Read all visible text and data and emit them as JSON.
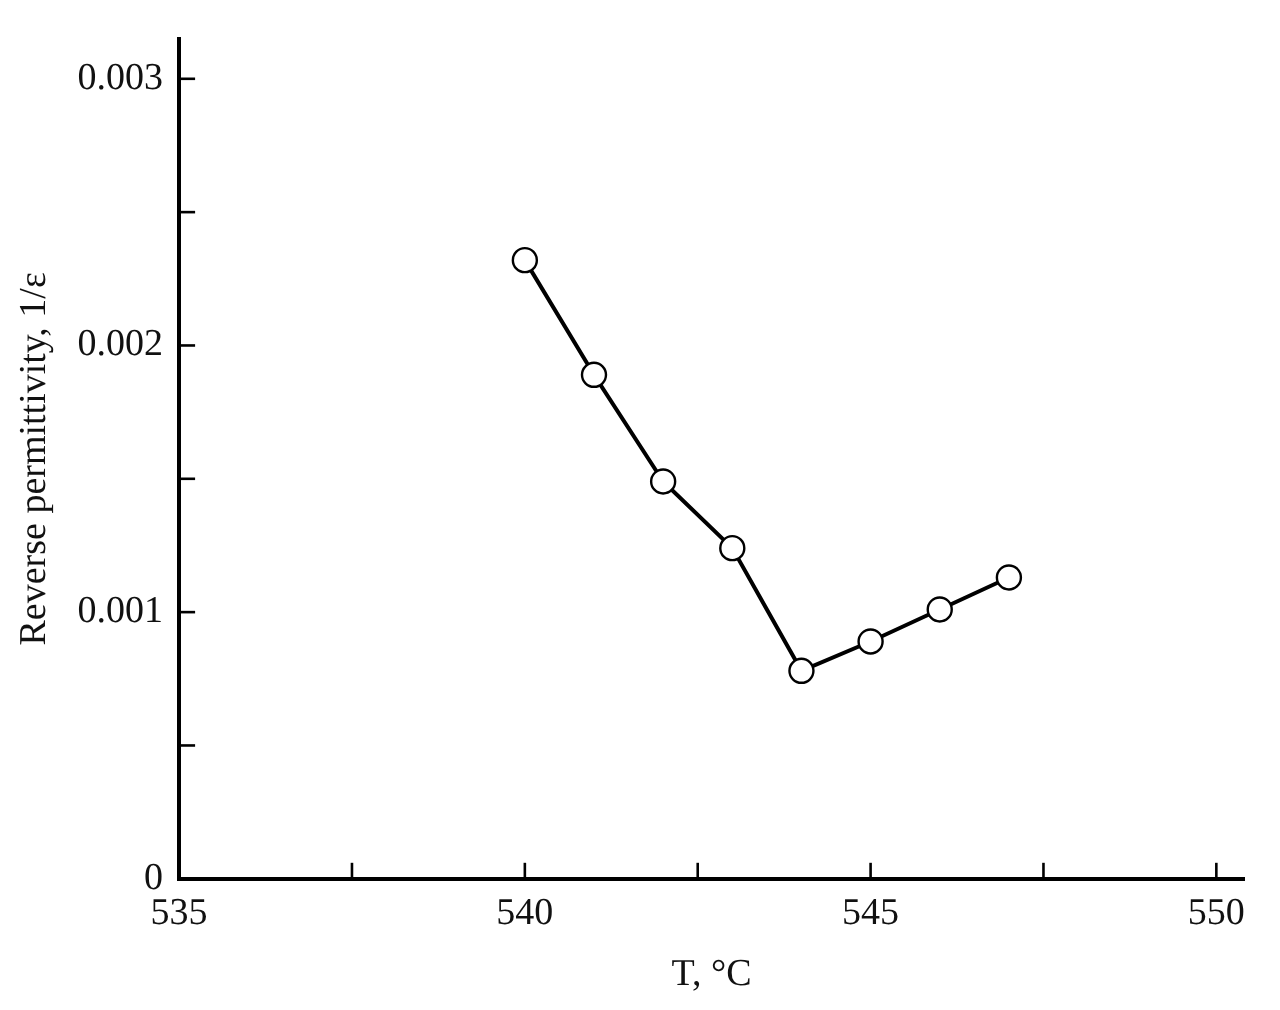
{
  "chart_data": {
    "type": "line",
    "xlabel": "T, °C",
    "ylabel": "Reverse permittivity, 1/ε",
    "x": [
      540,
      541,
      542,
      543,
      544,
      545,
      546,
      547
    ],
    "series": [
      {
        "color": "#000000",
        "values": [
          0.00232,
          0.00189,
          0.00149,
          0.00124,
          0.00078,
          0.00089,
          0.00101,
          0.00113
        ]
      }
    ],
    "xlim": [
      535,
      550.4
    ],
    "ylim": [
      0,
      0.00315
    ],
    "xticks": [
      535,
      {
        "value": 537.5,
        "label": null
      },
      540,
      {
        "value": 542.5,
        "label": null
      },
      545,
      {
        "value": 547.5,
        "label": null
      },
      550
    ],
    "yticks": [
      0,
      {
        "value": 0.0005,
        "label": null
      },
      0.001,
      {
        "value": 0.0015,
        "label": null
      },
      0.002,
      {
        "value": 0.0025,
        "label": null
      },
      0.003
    ],
    "grid": false,
    "legend": false,
    "marker": "circle",
    "line_style": "solid"
  }
}
